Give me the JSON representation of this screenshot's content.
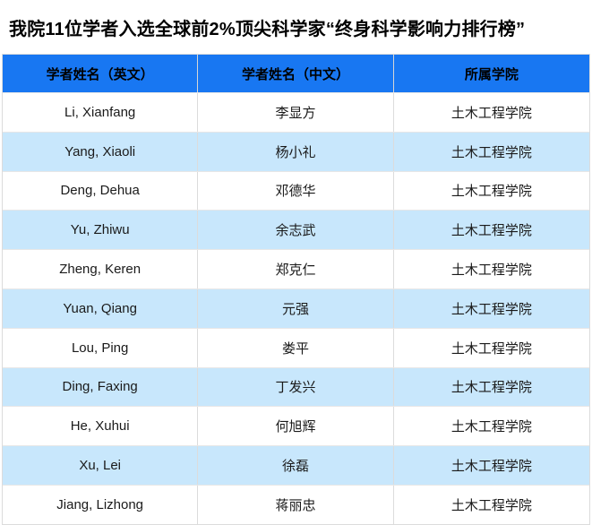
{
  "title": "我院11位学者入选全球前2%顶尖科学家“终身科学影响力排行榜”",
  "table": {
    "headers": [
      "学者姓名（英文）",
      "学者姓名（中文）",
      "所属学院"
    ],
    "rows": [
      [
        "Li, Xianfang",
        "李显方",
        "土木工程学院"
      ],
      [
        "Yang, Xiaoli",
        "杨小礼",
        "土木工程学院"
      ],
      [
        "Deng, Dehua",
        "邓德华",
        "土木工程学院"
      ],
      [
        "Yu, Zhiwu",
        "余志武",
        "土木工程学院"
      ],
      [
        "Zheng, Keren",
        "郑克仁",
        "土木工程学院"
      ],
      [
        "Yuan, Qiang",
        "元强",
        "土木工程学院"
      ],
      [
        "Lou, Ping",
        "娄平",
        "土木工程学院"
      ],
      [
        "Ding, Faxing",
        "丁发兴",
        "土木工程学院"
      ],
      [
        "He, Xuhui",
        "何旭辉",
        "土木工程学院"
      ],
      [
        "Xu, Lei",
        "徐磊",
        "土木工程学院"
      ],
      [
        "Jiang, Lizhong",
        "蒋丽忠",
        "土木工程学院"
      ]
    ]
  },
  "colors": {
    "header_bg": "#1877f2",
    "row_alt_bg": "#c8e7fc",
    "border": "#dcdcdc",
    "header_text": "#000000",
    "cell_text": "#1a1a1a"
  }
}
